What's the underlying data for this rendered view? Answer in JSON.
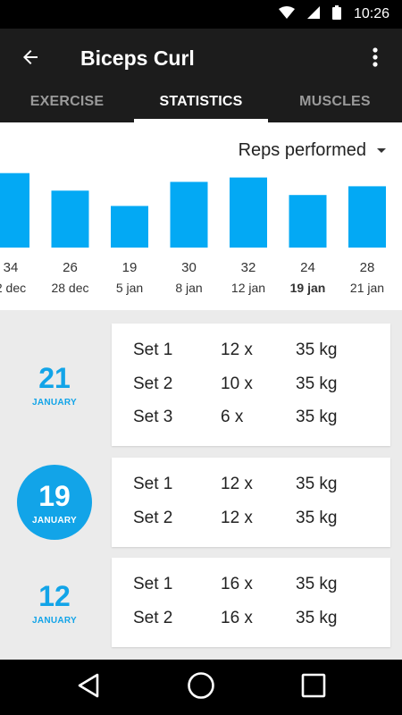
{
  "status_bar": {
    "time": "10:26",
    "icons": [
      "wifi-icon",
      "signal-icon",
      "battery-icon"
    ]
  },
  "toolbar": {
    "title": "Biceps Curl",
    "back_icon": "arrow-left-icon",
    "menu_icon": "more-vert-icon"
  },
  "tabs": [
    {
      "label": "EXERCISE",
      "active": false
    },
    {
      "label": "STATISTICS",
      "active": true
    },
    {
      "label": "MUSCLES",
      "active": false
    }
  ],
  "metric_select": {
    "value": "Reps performed"
  },
  "chart_data": {
    "type": "bar",
    "ylabel": "Reps performed",
    "ylim": [
      0,
      40
    ],
    "categories": [
      "2 dec",
      "28 dec",
      "5 jan",
      "8 jan",
      "12 jan",
      "19 jan",
      "21 jan"
    ],
    "values": [
      34,
      26,
      19,
      30,
      32,
      24,
      28
    ],
    "highlighted_category": "19 jan",
    "bar_color": "#03a9f4"
  },
  "workouts": [
    {
      "day": "21",
      "month": "JANUARY",
      "selected": false,
      "sets": [
        {
          "name": "Set 1",
          "reps": "12 x",
          "weight": "35 kg"
        },
        {
          "name": "Set 2",
          "reps": "10 x",
          "weight": "35 kg"
        },
        {
          "name": "Set 3",
          "reps": "6 x",
          "weight": "35 kg"
        }
      ]
    },
    {
      "day": "19",
      "month": "JANUARY",
      "selected": true,
      "sets": [
        {
          "name": "Set 1",
          "reps": "12 x",
          "weight": "35 kg"
        },
        {
          "name": "Set 2",
          "reps": "12 x",
          "weight": "35 kg"
        }
      ]
    },
    {
      "day": "12",
      "month": "JANUARY",
      "selected": false,
      "sets": [
        {
          "name": "Set 1",
          "reps": "16 x",
          "weight": "35 kg"
        },
        {
          "name": "Set 2",
          "reps": "16 x",
          "weight": "35 kg"
        }
      ]
    }
  ],
  "colors": {
    "accent": "#12a4e8",
    "app_bar": "#1c1c1c",
    "background": "#ebebeb"
  },
  "nav_bar": {
    "icons": [
      "back-triangle-icon",
      "home-circle-icon",
      "recents-square-icon"
    ]
  }
}
